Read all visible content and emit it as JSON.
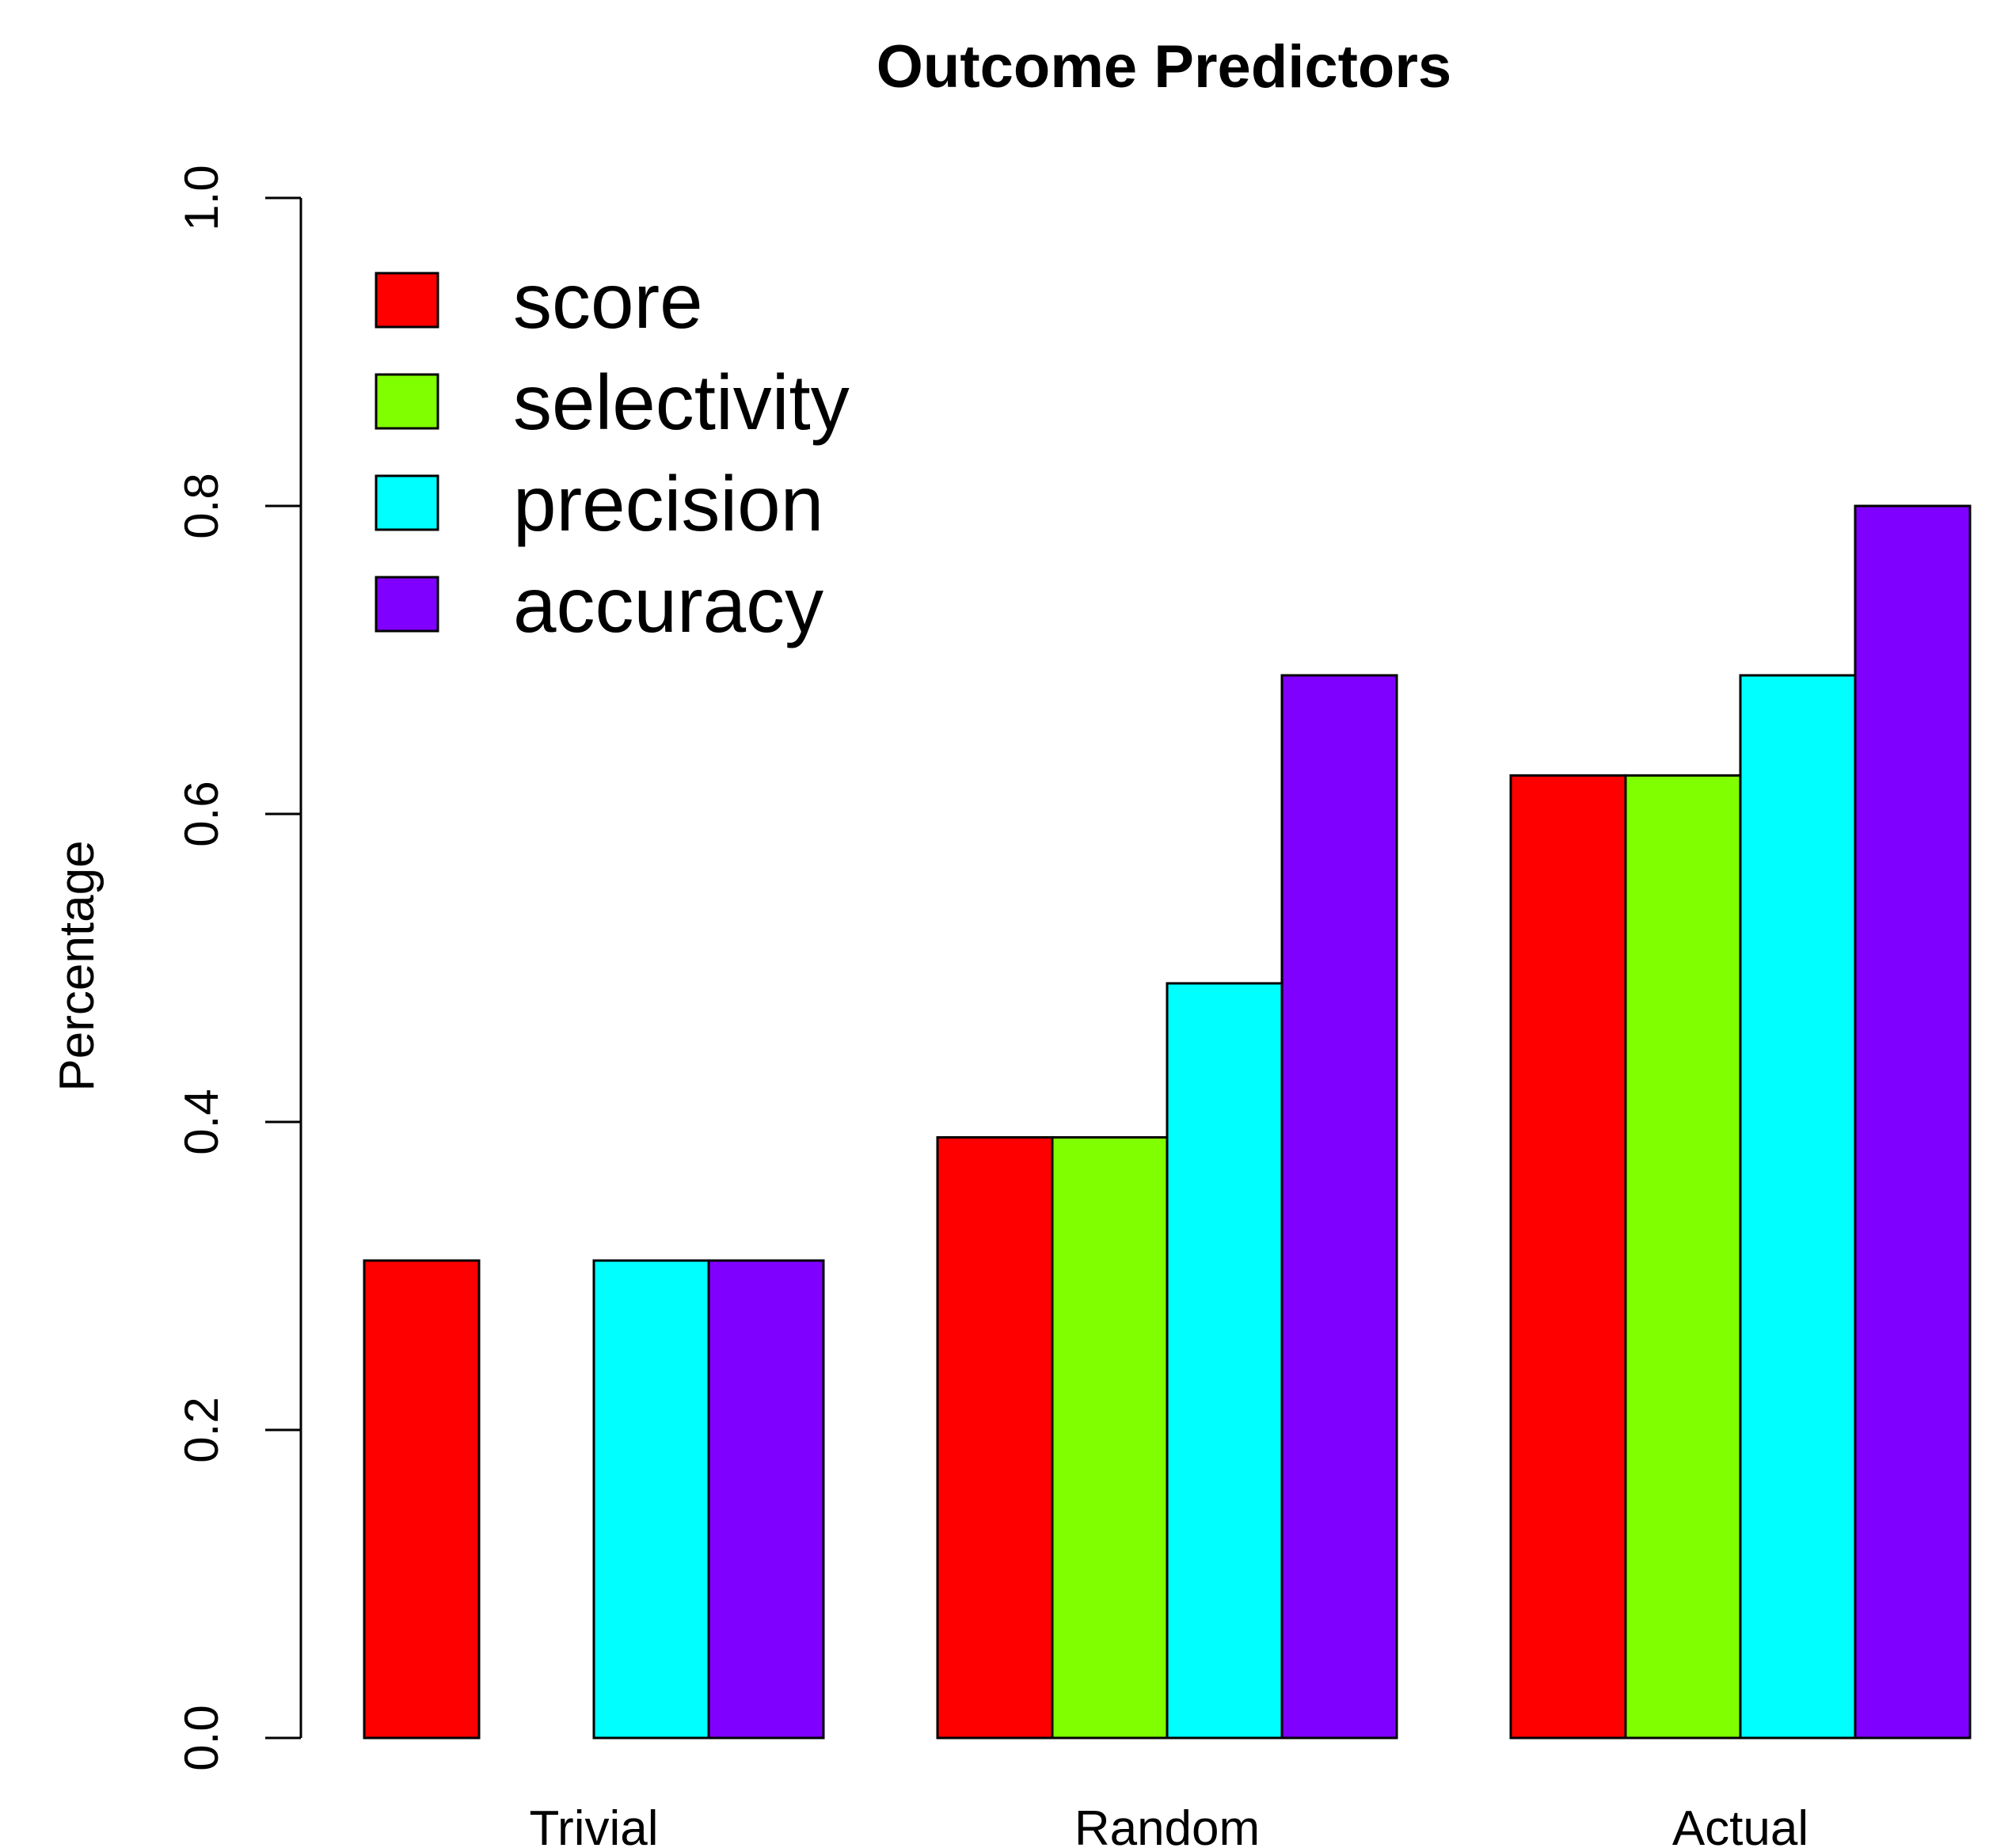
{
  "chart_data": {
    "type": "bar",
    "title": "Outcome Predictors",
    "xlabel": "",
    "ylabel": "Percentage",
    "ylim": [
      0,
      1.0
    ],
    "yticks": [
      "0.0",
      "0.2",
      "0.4",
      "0.6",
      "0.8",
      "1.0"
    ],
    "categories": [
      "Trivial",
      "Random",
      "Actual"
    ],
    "series": [
      {
        "name": "score",
        "color": "#ff0000",
        "values": [
          0.31,
          0.39,
          0.625
        ]
      },
      {
        "name": "selectivity",
        "color": "#80ff00",
        "values": [
          0.0,
          0.39,
          0.625
        ]
      },
      {
        "name": "precision",
        "color": "#00ffff",
        "values": [
          0.31,
          0.49,
          0.69
        ]
      },
      {
        "name": "accuracy",
        "color": "#8000ff",
        "values": [
          0.31,
          0.69,
          0.8
        ]
      }
    ],
    "grid": false,
    "legend_position": "top-left"
  }
}
